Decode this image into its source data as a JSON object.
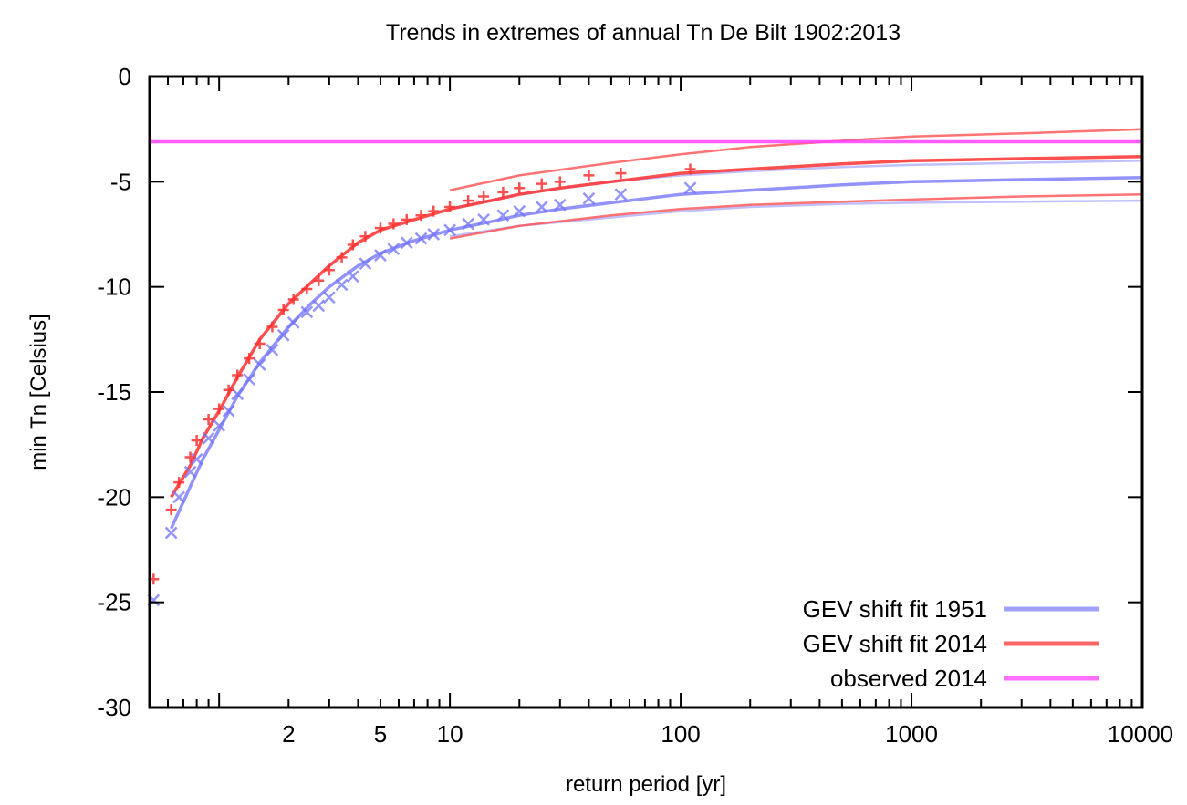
{
  "chart_data": {
    "type": "line",
    "title": "Trends in extremes of annual Tn De Bilt 1902:2013",
    "xlabel": "return period [yr]",
    "ylabel": "min Tn [Celsius]",
    "x_scale": "log",
    "xlim": [
      0.5,
      10000
    ],
    "ylim": [
      -30,
      0
    ],
    "x_ticks": [
      {
        "value": 2,
        "label": "2"
      },
      {
        "value": 5,
        "label": "5"
      },
      {
        "value": 10,
        "label": "10"
      },
      {
        "value": 100,
        "label": "100"
      },
      {
        "value": 1000,
        "label": "1000"
      },
      {
        "value": 10000,
        "label": "10000"
      }
    ],
    "y_ticks": [
      {
        "value": 0,
        "label": "0"
      },
      {
        "value": -5,
        "label": "-5"
      },
      {
        "value": -10,
        "label": "-10"
      },
      {
        "value": -15,
        "label": "-15"
      },
      {
        "value": -20,
        "label": "-20"
      },
      {
        "value": -25,
        "label": "-25"
      },
      {
        "value": -30,
        "label": "-30"
      }
    ],
    "grid": false,
    "legend_position": "bottom-right",
    "colors": {
      "blue": "#7070ff",
      "red": "#ff3030",
      "pink": "#ff40ff"
    },
    "series": [
      {
        "name": "GEV shift fit 1951",
        "color": "#8080ff",
        "x": [
          0.62,
          0.75,
          0.85,
          1.0,
          1.2,
          1.5,
          2.0,
          2.5,
          3.0,
          4.0,
          5.0,
          7.0,
          10,
          15,
          20,
          30,
          50,
          100,
          200,
          500,
          1000,
          3000,
          10000
        ],
        "y": [
          -21.5,
          -19.5,
          -18.2,
          -16.8,
          -15.2,
          -13.6,
          -11.9,
          -10.8,
          -10.0,
          -9.0,
          -8.4,
          -7.8,
          -7.3,
          -6.9,
          -6.6,
          -6.3,
          -6.0,
          -5.6,
          -5.4,
          -5.15,
          -5.0,
          -4.9,
          -4.8
        ]
      },
      {
        "name": "GEV shift fit 2014",
        "color": "#ff3030",
        "x": [
          0.62,
          0.75,
          0.85,
          1.0,
          1.2,
          1.5,
          2.0,
          2.5,
          3.0,
          4.0,
          5.0,
          7.0,
          10,
          15,
          20,
          30,
          50,
          100,
          200,
          500,
          1000,
          3000,
          10000
        ],
        "y": [
          -20.0,
          -18.5,
          -17.2,
          -15.9,
          -14.3,
          -12.5,
          -10.8,
          -9.8,
          -9.0,
          -7.9,
          -7.3,
          -6.8,
          -6.3,
          -5.9,
          -5.6,
          -5.3,
          -5.0,
          -4.6,
          -4.4,
          -4.15,
          -4.0,
          -3.9,
          -3.8
        ]
      },
      {
        "name": "observed 2014",
        "color": "#ff40ff",
        "x": [
          0.5,
          10000
        ],
        "y": [
          -3.1,
          -3.1
        ]
      }
    ],
    "confidence_bands": [
      {
        "series": "GEV shift fit 1951",
        "color": "#b0b0ff",
        "x": [
          10,
          20,
          50,
          100,
          200,
          500,
          1000,
          3000,
          10000
        ],
        "upper": [
          -6.3,
          -5.6,
          -5.0,
          -4.7,
          -4.5,
          -4.3,
          -4.2,
          -4.1,
          -4.0
        ],
        "lower": [
          -7.6,
          -7.1,
          -6.7,
          -6.4,
          -6.2,
          -6.05,
          -6.0,
          -5.95,
          -5.9
        ]
      },
      {
        "series": "GEV shift fit 2014",
        "color": "#ff5050",
        "x": [
          10,
          20,
          50,
          100,
          200,
          500,
          1000,
          3000,
          10000
        ],
        "upper": [
          -5.4,
          -4.7,
          -4.1,
          -3.7,
          -3.35,
          -3.05,
          -2.85,
          -2.7,
          -2.5
        ],
        "lower": [
          -7.7,
          -7.1,
          -6.6,
          -6.3,
          -6.1,
          -5.95,
          -5.85,
          -5.7,
          -5.6
        ]
      }
    ],
    "observed_points": [
      {
        "series": "GEV shift fit 1951",
        "color": "#7070ff",
        "marker": "x",
        "x": [
          0.52,
          0.62,
          0.67,
          0.75,
          0.8,
          0.9,
          1.0,
          1.1,
          1.2,
          1.35,
          1.5,
          1.7,
          1.9,
          2.1,
          2.4,
          2.7,
          3.0,
          3.4,
          3.8,
          4.3,
          5.0,
          5.7,
          6.5,
          7.5,
          8.5,
          10,
          12,
          14,
          17,
          20,
          25,
          30,
          40,
          55,
          110
        ],
        "y": [
          -24.9,
          -21.7,
          -20.0,
          -18.8,
          -18.2,
          -17.2,
          -16.6,
          -15.9,
          -15.1,
          -14.4,
          -13.7,
          -13.0,
          -12.3,
          -11.7,
          -11.2,
          -10.9,
          -10.5,
          -9.9,
          -9.5,
          -8.9,
          -8.5,
          -8.2,
          -7.9,
          -7.7,
          -7.5,
          -7.3,
          -7.0,
          -6.8,
          -6.6,
          -6.4,
          -6.2,
          -6.1,
          -5.8,
          -5.6,
          -5.3
        ]
      },
      {
        "series": "GEV shift fit 2014",
        "color": "#ff3030",
        "marker": "+",
        "x": [
          0.52,
          0.62,
          0.67,
          0.75,
          0.8,
          0.9,
          1.0,
          1.1,
          1.2,
          1.35,
          1.5,
          1.7,
          1.9,
          2.1,
          2.4,
          2.7,
          3.0,
          3.4,
          3.8,
          4.3,
          5.0,
          5.7,
          6.5,
          7.5,
          8.5,
          10,
          12,
          14,
          17,
          20,
          25,
          30,
          40,
          55,
          110
        ],
        "y": [
          -23.9,
          -20.6,
          -19.3,
          -18.1,
          -17.3,
          -16.3,
          -15.8,
          -14.9,
          -14.2,
          -13.4,
          -12.7,
          -11.9,
          -11.1,
          -10.6,
          -10.1,
          -9.7,
          -9.2,
          -8.6,
          -8.0,
          -7.6,
          -7.2,
          -7.0,
          -6.8,
          -6.6,
          -6.4,
          -6.2,
          -5.9,
          -5.7,
          -5.5,
          -5.3,
          -5.1,
          -5.0,
          -4.7,
          -4.6,
          -4.4
        ]
      }
    ]
  }
}
